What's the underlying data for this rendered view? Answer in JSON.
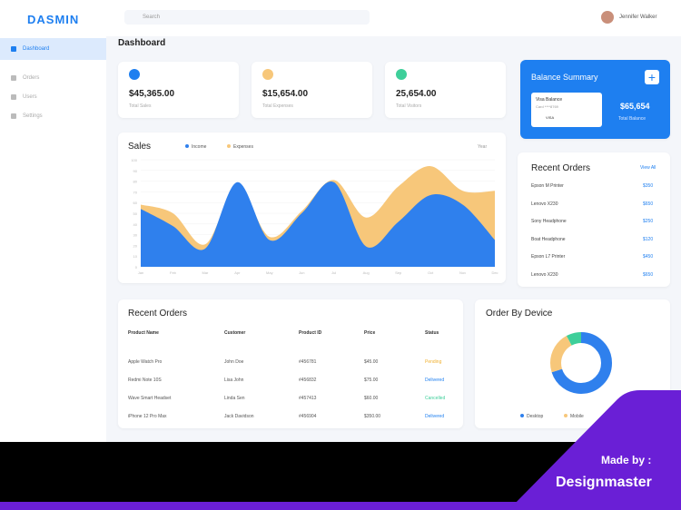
{
  "sidebar": {
    "brand": "DASMIN",
    "menu": [
      "Dashboard",
      "Orders",
      "Users",
      "Settings"
    ]
  },
  "topbar": {
    "search": "Search",
    "user": "Jennifer Walker"
  },
  "page_title": "Dashboard",
  "stats": [
    {
      "value": "$45,365.00",
      "label": "Total Sales"
    },
    {
      "value": "$15,654.00",
      "label": "Total Expenses"
    },
    {
      "value": "25,654.00",
      "label": "Total Visitors"
    }
  ],
  "balance": {
    "title": "Balance Summary",
    "card_title": "Visa Balance",
    "card_sub": "Card ****8769",
    "card_badge": "VISA",
    "amount": "$65,654",
    "amount_label": "Total Balance"
  },
  "sales": {
    "type": "area",
    "title": "Sales",
    "filter": "Year",
    "ylim": [
      0,
      100
    ],
    "yticks": [
      0,
      10,
      20,
      30,
      40,
      50,
      60,
      70,
      80,
      90,
      100
    ],
    "categories": [
      "Jan",
      "Feb",
      "Mar",
      "Apr",
      "May",
      "Jun",
      "Jul",
      "Aug",
      "Sep",
      "Oct",
      "Nov",
      "Dec"
    ],
    "series": [
      {
        "name": "Income",
        "color": "#2f80ed",
        "values": [
          54,
          38,
          17,
          79,
          25,
          50,
          79,
          19,
          42,
          67,
          58,
          25
        ]
      },
      {
        "name": "Expenses",
        "color": "#f7c77a",
        "values": [
          58,
          50,
          21,
          75,
          28,
          52,
          81,
          46,
          75,
          94,
          71,
          71
        ]
      }
    ]
  },
  "recent_orders": {
    "title": "Recent Orders",
    "link": "View All",
    "items": [
      {
        "name": "Epson M Printer",
        "price": "$350"
      },
      {
        "name": "Lenovo X230",
        "price": "$650"
      },
      {
        "name": "Sony Headphone",
        "price": "$250"
      },
      {
        "name": "Boat Headphone",
        "price": "$120"
      },
      {
        "name": "Epson L7 Printer",
        "price": "$450"
      },
      {
        "name": "Lenovo X230",
        "price": "$650"
      }
    ]
  },
  "orders_table": {
    "title": "Recent Orders",
    "headers": [
      "Product Name",
      "Customer",
      "Product ID",
      "Price",
      "Status"
    ],
    "rows": [
      [
        "Apple Watch Pro",
        "John Doe",
        "#456781",
        "$45.00",
        "Pending"
      ],
      [
        "Redmi Note 10S",
        "Lisa John",
        "#456832",
        "$75.00",
        "Delivered"
      ],
      [
        "Wave Smart Headset",
        "Linda Sen",
        "#457413",
        "$60.00",
        "Cancelled"
      ],
      [
        "iPhone 12 Pro Max",
        "Jack Davidson",
        "#456904",
        "$350.00",
        "Delivered"
      ]
    ]
  },
  "device": {
    "title": "Order By Device",
    "segments": [
      {
        "value": 70,
        "color": "#2f80ed"
      },
      {
        "value": 22,
        "color": "#f7c77a"
      },
      {
        "value": 8,
        "color": "#3ecf9a"
      }
    ],
    "legend": [
      "Desktop",
      "Mobile"
    ]
  },
  "badge": {
    "made_by": "Made by :",
    "brand": "Designmaster"
  }
}
